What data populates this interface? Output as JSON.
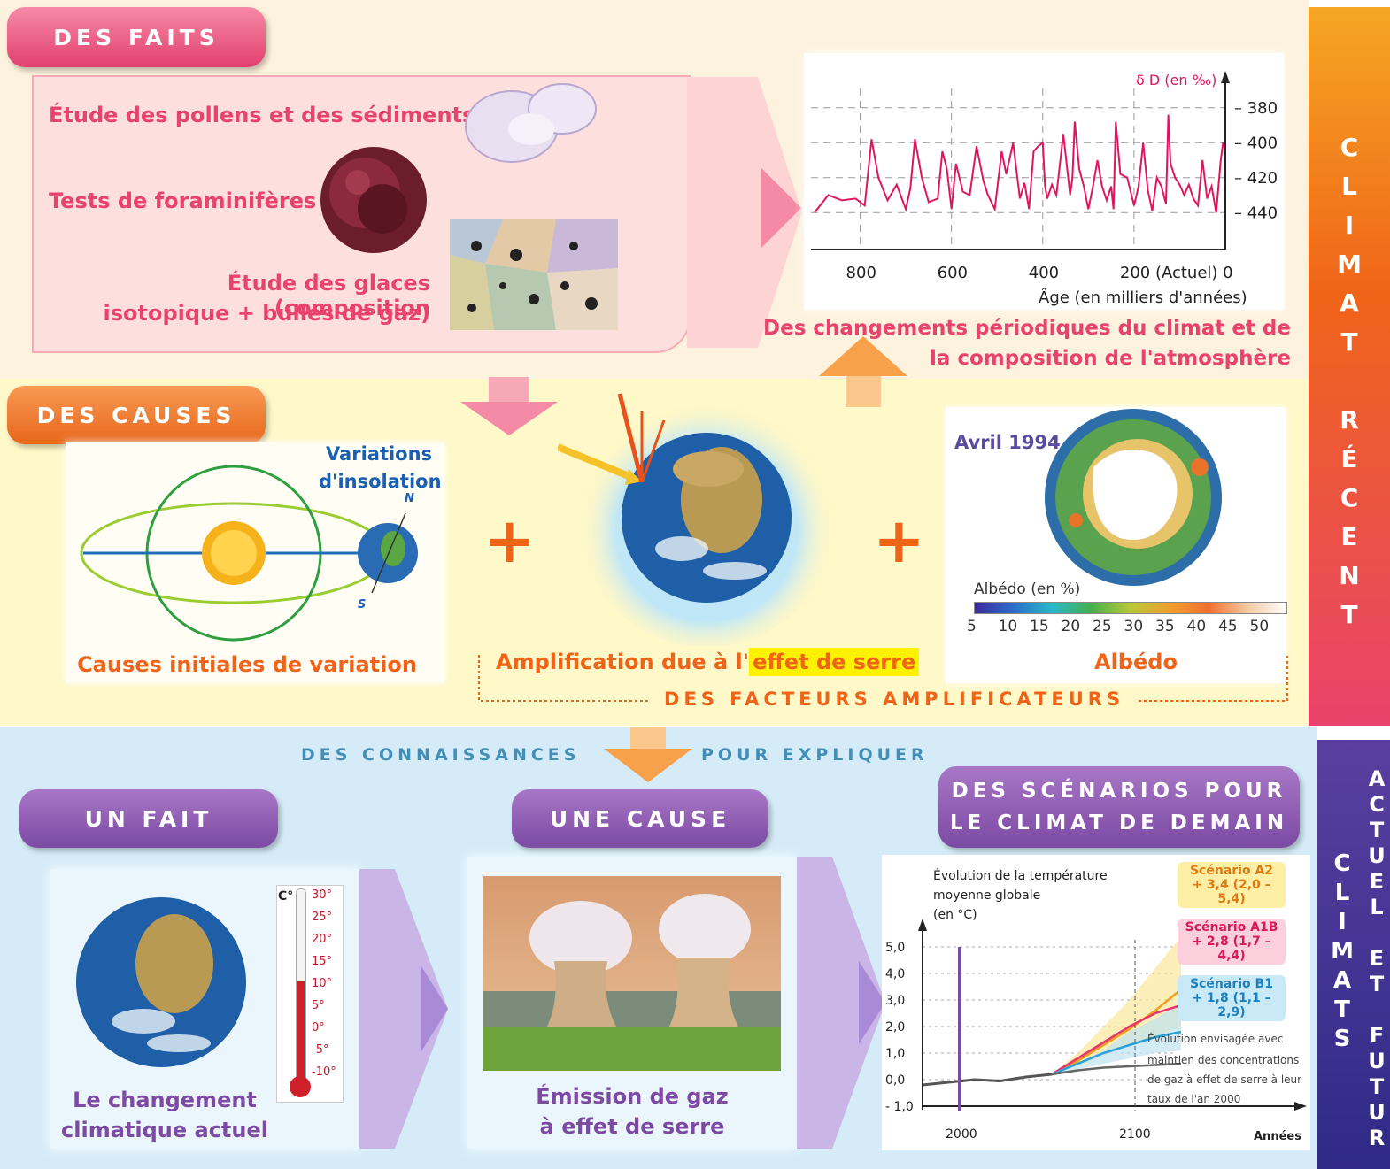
{
  "top": {
    "tag_faits": "DES FAITS",
    "tag_causes": "DES CAUSES",
    "fact_pollen": "Étude des pollens et des sédiments",
    "fact_foram": "Tests de foraminifères",
    "fact_ice_line1": "Étude des glaces (composition",
    "fact_ice_line2": "isotopique + bulles de gaz)",
    "result_line1": "Des changements périodiques du climat et de",
    "result_line2": "la composition de l'atmosphère",
    "insolation_line1": "Variations",
    "insolation_line2": "d'insolation",
    "north": "N",
    "south": "S",
    "initial_causes": "Causes initiales de variation",
    "amplification_prefix": "Amplification due à l'",
    "amplification_highlight": "effet de serre",
    "albedo_date": "Avril 1994",
    "albedo_scale_label": "Albédo (en %)",
    "albedo_ticks": [
      "5",
      "10",
      "15",
      "20",
      "25",
      "30",
      "35",
      "40",
      "45",
      "50"
    ],
    "albedo_caption": "Albédo",
    "amplifiers": "DES FACTEURS AMPLIFICATEURS",
    "plus": "+"
  },
  "side": {
    "top_letters": [
      "C",
      "L",
      "I",
      "M",
      "A",
      "T",
      "",
      "R",
      "É",
      "C",
      "E",
      "N",
      "T"
    ],
    "bottom_col1": [
      "C",
      "L",
      "I",
      "M",
      "A",
      "T",
      "S"
    ],
    "bottom_col2": [
      "A",
      "C",
      "T",
      "U",
      "E",
      "L",
      "",
      "E",
      "T",
      "",
      "F",
      "U",
      "T",
      "U",
      "R"
    ]
  },
  "bottom": {
    "knowledge": "DES CONNAISSANCES",
    "explain": "POUR EXPLIQUER",
    "tag_fait": "UN FAIT",
    "tag_cause": "UNE CAUSE",
    "tag_scenarios_line1": "DES SCÉNARIOS POUR",
    "tag_scenarios_line2": "LE CLIMAT DE DEMAIN",
    "fact_caption_line1": "Le changement",
    "fact_caption_line2": "climatique actuel",
    "cause_caption_line1": "Émission de gaz",
    "cause_caption_line2": "à effet de serre",
    "thermo_unit": "C°",
    "thermo_ticks": [
      "30°",
      "25°",
      "20°",
      "15°",
      "10°",
      "5°",
      "0°",
      "-5°",
      "-10°"
    ]
  },
  "chart_data": [
    {
      "type": "line",
      "title": "",
      "ylabel": "δ D (en ‰)",
      "xlabel": "Âge (en milliers d'années)",
      "x_ticks": [
        "800",
        "600",
        "400",
        "200 (Actuel) 0"
      ],
      "y_ticks": [
        "380",
        "400",
        "420",
        "440"
      ],
      "xlim": [
        900,
        0
      ],
      "ylim": [
        450,
        370
      ],
      "series": [
        {
          "x": [
            900,
            870,
            840,
            810,
            790,
            775,
            760,
            740,
            720,
            700,
            690,
            680,
            665,
            650,
            630,
            620,
            610,
            600,
            590,
            575,
            560,
            545,
            530,
            520,
            505,
            490,
            480,
            465,
            450,
            440,
            430,
            420,
            410,
            400,
            395,
            390,
            380,
            370,
            355,
            340,
            335,
            330,
            320,
            310,
            300,
            290,
            280,
            270,
            260,
            250,
            245,
            240,
            230,
            215,
            200,
            190,
            180,
            170,
            160,
            150,
            140,
            130,
            125,
            120,
            110,
            100,
            90,
            80,
            70,
            60,
            50,
            40,
            30,
            20,
            10,
            5,
            0
          ],
          "values": [
            440,
            430,
            433,
            432,
            436,
            398,
            420,
            433,
            424,
            438,
            426,
            398,
            420,
            434,
            432,
            405,
            415,
            438,
            412,
            428,
            430,
            402,
            422,
            430,
            438,
            405,
            418,
            400,
            432,
            423,
            438,
            405,
            402,
            400,
            425,
            432,
            424,
            430,
            395,
            430,
            420,
            388,
            415,
            425,
            438,
            425,
            410,
            425,
            433,
            425,
            438,
            388,
            418,
            420,
            436,
            425,
            400,
            427,
            439,
            420,
            425,
            435,
            384,
            412,
            420,
            424,
            430,
            424,
            432,
            436,
            410,
            432,
            425,
            440,
            410,
            400,
            405
          ]
        }
      ]
    },
    {
      "type": "line",
      "title": "Évolution de la température moyenne globale",
      "ylabel": "(en °C)",
      "xlabel": "Années",
      "x_ticks": [
        "2000",
        "2100"
      ],
      "y_ticks": [
        "5,0",
        "4,0",
        "3,0",
        "2,0",
        "1,0",
        "0,0",
        "- 1,0"
      ],
      "xlim": [
        1900,
        2200
      ],
      "ylim": [
        -1.0,
        5.0
      ],
      "series": [
        {
          "name": "Scénario A2",
          "label": "+ 3,4 (2,0 – 5,4)",
          "color": "#f0a020",
          "x": [
            2000,
            2020,
            2040,
            2060,
            2080,
            2100
          ],
          "values": [
            0.2,
            0.7,
            1.3,
            1.9,
            2.6,
            3.4
          ]
        },
        {
          "name": "Scénario A1B",
          "label": "+ 2,8 (1,7 – 4,4)",
          "color": "#e8356e",
          "x": [
            2000,
            2020,
            2040,
            2060,
            2080,
            2100
          ],
          "values": [
            0.2,
            0.8,
            1.4,
            2.0,
            2.5,
            2.8
          ]
        },
        {
          "name": "Scénario B1",
          "label": "+ 1,8 (1,1 – 2,9)",
          "color": "#2aa0d8",
          "x": [
            2000,
            2020,
            2040,
            2060,
            2080,
            2100
          ],
          "values": [
            0.2,
            0.6,
            1.0,
            1.3,
            1.6,
            1.8
          ]
        },
        {
          "name": "Évolution envisagée avec maintien des concentrations de gaz à effet de serre à leur taux de l'an 2000",
          "color": "#666666",
          "x": [
            2000,
            2020,
            2040,
            2060,
            2080,
            2100
          ],
          "values": [
            0.2,
            0.35,
            0.45,
            0.5,
            0.55,
            0.6
          ]
        },
        {
          "x": [
            1900,
            1920,
            1940,
            1960,
            1980,
            2000
          ],
          "values": [
            -0.2,
            -0.1,
            0.0,
            -0.05,
            0.1,
            0.2
          ],
          "color": "#555555"
        }
      ],
      "scenario_labels": [
        {
          "name": "Scénario A2",
          "value": "+ 3,4 (2,0 – 5,4)"
        },
        {
          "name": "Scénario A1B",
          "value": "+ 2,8 (1,7 – 4,4)"
        },
        {
          "name": "Scénario B1",
          "value": "+ 1,8 (1,1 – 2,9)"
        }
      ],
      "note_line1": "Évolution envisagée avec",
      "note_line2": "maintien des concentrations",
      "note_line3": "de gaz à effet de serre à leur",
      "note_line4": "taux de l'an 2000"
    }
  ],
  "colors": {
    "pink": "#e8436c",
    "orange": "#f06419",
    "purple": "#7d4aa3",
    "blue_text": "#1a5fb0"
  }
}
